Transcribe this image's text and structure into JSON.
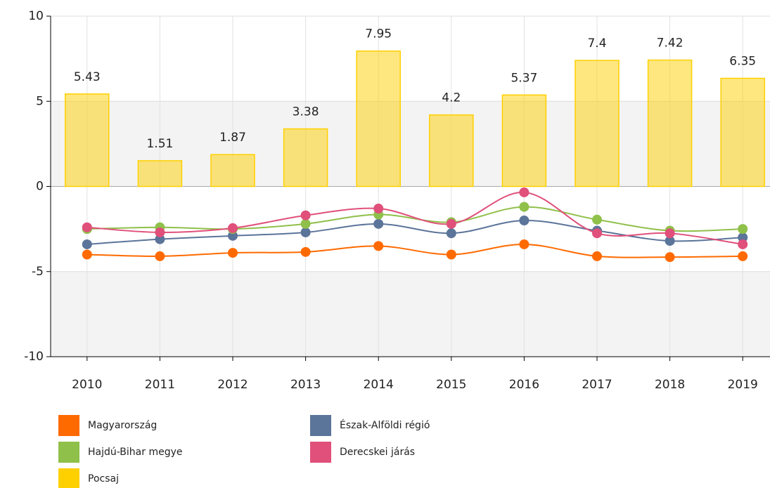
{
  "chart_data": {
    "type": "combo",
    "categories": [
      "2010",
      "2011",
      "2012",
      "2013",
      "2014",
      "2015",
      "2016",
      "2017",
      "2018",
      "2019"
    ],
    "ylim": [
      -10,
      10
    ],
    "yticks": [
      -10,
      -5,
      0,
      5,
      10
    ],
    "grid": true,
    "series": [
      {
        "name": "Magyarország",
        "type": "line",
        "color": "#ff6a00",
        "values": [
          -4.0,
          -4.1,
          -3.9,
          -3.85,
          -3.5,
          -4.0,
          -3.4,
          -4.1,
          -4.15,
          -4.1
        ]
      },
      {
        "name": "Észak-Alföldi régió",
        "type": "line",
        "color": "#5b7499",
        "values": [
          -3.4,
          -3.1,
          -2.9,
          -2.7,
          -2.2,
          -2.75,
          -2.0,
          -2.6,
          -3.2,
          -3.0
        ]
      },
      {
        "name": "Hajdú-Bihar megye",
        "type": "line",
        "color": "#8fc04a",
        "values": [
          -2.5,
          -2.4,
          -2.5,
          -2.2,
          -1.65,
          -2.1,
          -1.2,
          -1.95,
          -2.6,
          -2.5
        ]
      },
      {
        "name": "Derecskei járás",
        "type": "line",
        "color": "#e0507a",
        "values": [
          -2.4,
          -2.7,
          -2.45,
          -1.7,
          -1.3,
          -2.2,
          -0.35,
          -2.75,
          -2.75,
          -3.4
        ]
      },
      {
        "name": "Pocsaj",
        "type": "bar",
        "color": "#ffd000",
        "values": [
          5.43,
          1.51,
          1.87,
          3.38,
          7.95,
          4.2,
          5.37,
          7.4,
          7.42,
          6.35
        ]
      }
    ]
  }
}
